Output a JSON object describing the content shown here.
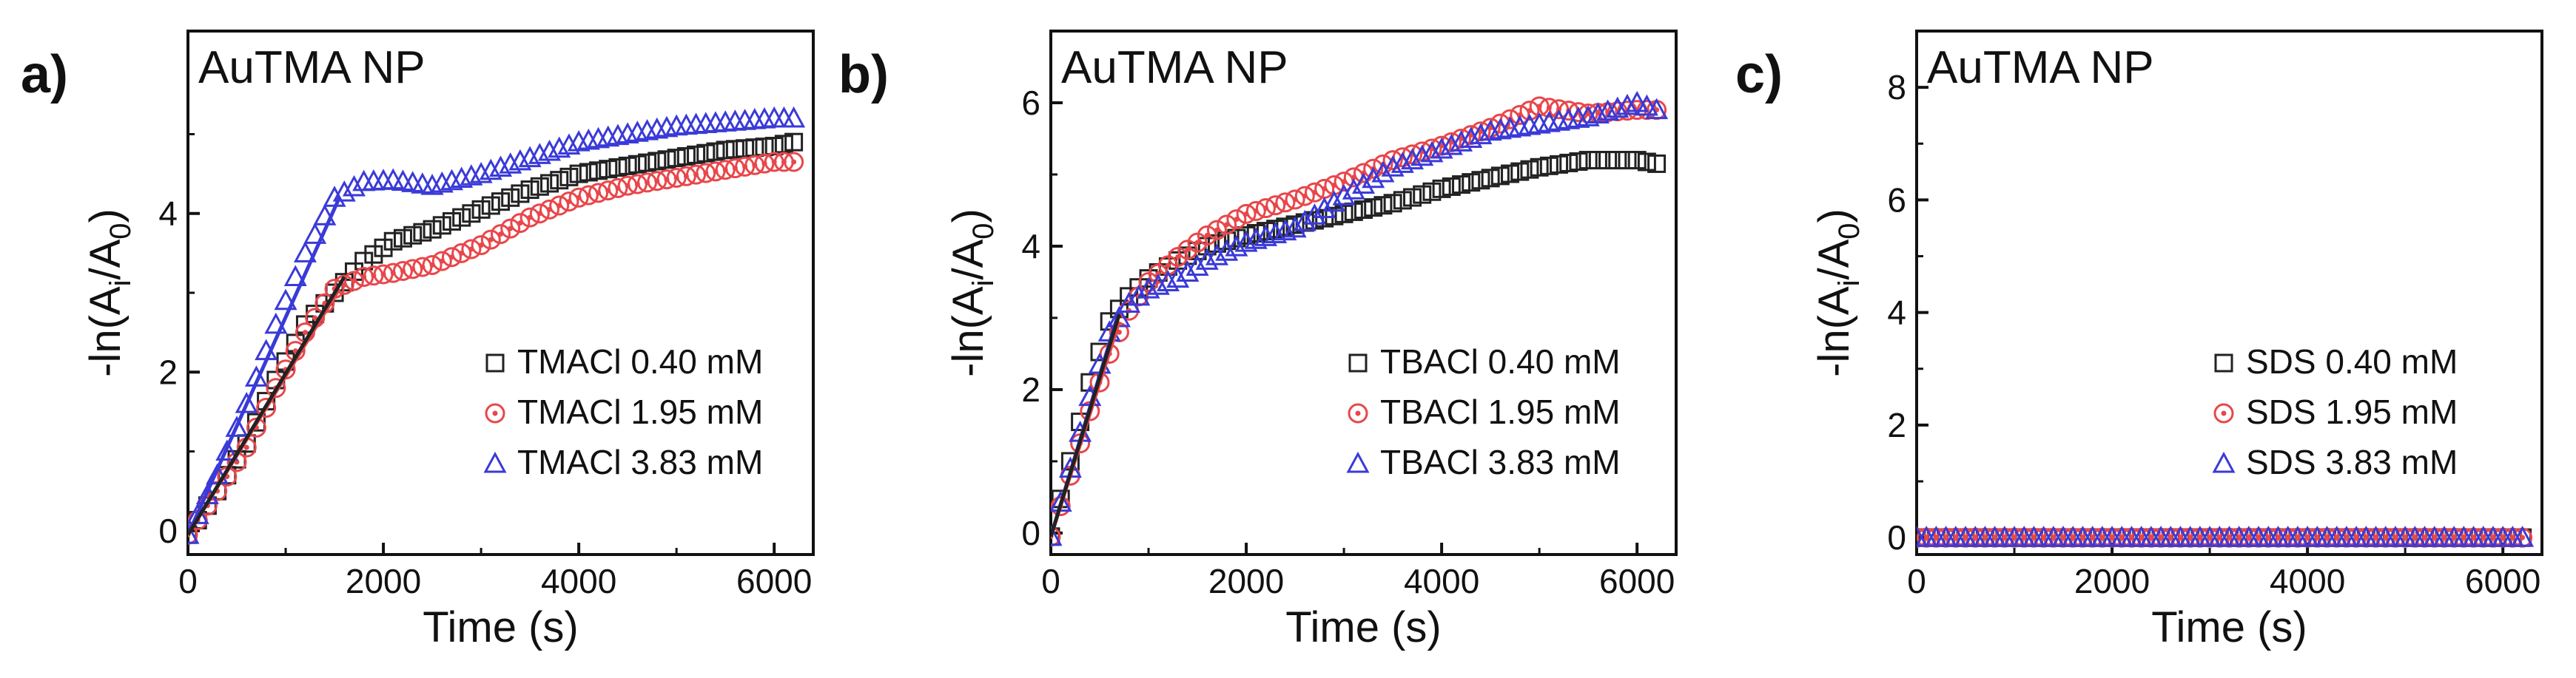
{
  "figure": {
    "panel_labels": [
      "a)",
      "b)",
      "c)"
    ]
  },
  "colors": {
    "black": "#222222",
    "red": "#e8474b",
    "blue": "#3a3ad8",
    "axis": "#111111"
  },
  "chart_data": [
    {
      "type": "scatter",
      "panel": "a)",
      "title": "AuTMA NP",
      "xlabel": "Time (s)",
      "ylabel": "-ln(A",
      "ylabel_sub1": "i",
      "ylabel_mid": "/A",
      "ylabel_sub2": "0",
      "ylabel_end": ")",
      "xlim": [
        0,
        6400
      ],
      "ylim": [
        -0.3,
        6.3
      ],
      "xticks": [
        0,
        2000,
        4000,
        6000
      ],
      "yticks": [
        0,
        2,
        4
      ],
      "legend_position": "bottom-right",
      "series": [
        {
          "name": "TMACl 0.40 mM",
          "color": "#222222",
          "marker": "square",
          "points": [
            [
              0,
              -0.05
            ],
            [
              300,
              0.5
            ],
            [
              600,
              1.1
            ],
            [
              900,
              1.9
            ],
            [
              1200,
              2.6
            ],
            [
              1500,
              3.0
            ],
            [
              1800,
              3.4
            ],
            [
              2100,
              3.65
            ],
            [
              2500,
              3.8
            ],
            [
              3000,
              4.05
            ],
            [
              3500,
              4.3
            ],
            [
              4000,
              4.5
            ],
            [
              4500,
              4.6
            ],
            [
              5000,
              4.7
            ],
            [
              5500,
              4.8
            ],
            [
              6000,
              4.85
            ],
            [
              6200,
              4.9
            ]
          ]
        },
        {
          "name": "TMACl 1.95 mM",
          "color": "#e8474b",
          "marker": "circle",
          "points": [
            [
              0,
              -0.05
            ],
            [
              300,
              0.5
            ],
            [
              600,
              1.05
            ],
            [
              900,
              1.8
            ],
            [
              1200,
              2.5
            ],
            [
              1500,
              3.05
            ],
            [
              1800,
              3.2
            ],
            [
              2100,
              3.25
            ],
            [
              2500,
              3.35
            ],
            [
              3000,
              3.6
            ],
            [
              3500,
              3.95
            ],
            [
              4000,
              4.2
            ],
            [
              4500,
              4.35
            ],
            [
              5000,
              4.45
            ],
            [
              5500,
              4.55
            ],
            [
              6000,
              4.65
            ],
            [
              6200,
              4.65
            ]
          ]
        },
        {
          "name": "TMACl 3.83 mM",
          "color": "#3a3ad8",
          "marker": "triangle",
          "points": [
            [
              0,
              -0.05
            ],
            [
              300,
              0.7
            ],
            [
              600,
              1.6
            ],
            [
              900,
              2.6
            ],
            [
              1200,
              3.5
            ],
            [
              1500,
              4.2
            ],
            [
              1800,
              4.4
            ],
            [
              2100,
              4.42
            ],
            [
              2500,
              4.35
            ],
            [
              3000,
              4.5
            ],
            [
              3500,
              4.7
            ],
            [
              4000,
              4.9
            ],
            [
              4500,
              5.0
            ],
            [
              5000,
              5.1
            ],
            [
              5500,
              5.15
            ],
            [
              6000,
              5.2
            ],
            [
              6200,
              5.2
            ]
          ]
        }
      ],
      "fits": [
        {
          "color": "#3a3ad8",
          "points": [
            [
              0,
              -0.05
            ],
            [
              1550,
              4.2
            ]
          ]
        },
        {
          "color": "#e8474b",
          "points": [
            [
              0,
              -0.05
            ],
            [
              1550,
              3.05
            ]
          ]
        },
        {
          "color": "#222222",
          "points": [
            [
              0,
              -0.05
            ],
            [
              1600,
              3.2
            ]
          ]
        }
      ]
    },
    {
      "type": "scatter",
      "panel": "b)",
      "title": "AuTMA NP",
      "xlabel": "Time (s)",
      "ylabel": "-ln(A",
      "ylabel_sub1": "i",
      "ylabel_mid": "/A",
      "ylabel_sub2": "0",
      "ylabel_end": ")",
      "xlim": [
        0,
        6400
      ],
      "ylim": [
        -0.3,
        7.0
      ],
      "xticks": [
        0,
        2000,
        4000,
        6000
      ],
      "yticks": [
        0,
        2,
        4,
        6
      ],
      "legend_position": "bottom-right",
      "series": [
        {
          "name": "TBACl 0.40 mM",
          "color": "#222222",
          "marker": "square",
          "points": [
            [
              0,
              -0.05
            ],
            [
              200,
              1.0
            ],
            [
              400,
              2.1
            ],
            [
              600,
              2.95
            ],
            [
              800,
              3.3
            ],
            [
              1000,
              3.55
            ],
            [
              1300,
              3.8
            ],
            [
              1600,
              4.0
            ],
            [
              2000,
              4.15
            ],
            [
              2500,
              4.3
            ],
            [
              3000,
              4.45
            ],
            [
              3500,
              4.6
            ],
            [
              4000,
              4.8
            ],
            [
              4500,
              4.95
            ],
            [
              5000,
              5.1
            ],
            [
              5500,
              5.2
            ],
            [
              6000,
              5.2
            ],
            [
              6200,
              5.15
            ]
          ]
        },
        {
          "name": "TBACl 1.95 mM",
          "color": "#e8474b",
          "marker": "circle",
          "points": [
            [
              0,
              -0.05
            ],
            [
              200,
              0.8
            ],
            [
              400,
              1.7
            ],
            [
              600,
              2.5
            ],
            [
              800,
              3.1
            ],
            [
              1000,
              3.5
            ],
            [
              1300,
              3.85
            ],
            [
              1600,
              4.15
            ],
            [
              2000,
              4.45
            ],
            [
              2500,
              4.65
            ],
            [
              3000,
              4.9
            ],
            [
              3500,
              5.2
            ],
            [
              4000,
              5.4
            ],
            [
              4500,
              5.65
            ],
            [
              5000,
              5.95
            ],
            [
              5500,
              5.85
            ],
            [
              6000,
              5.9
            ],
            [
              6200,
              5.9
            ]
          ]
        },
        {
          "name": "TBACl 3.83 mM",
          "color": "#3a3ad8",
          "marker": "triangle",
          "points": [
            [
              0,
              -0.05
            ],
            [
              200,
              0.9
            ],
            [
              400,
              1.9
            ],
            [
              600,
              2.8
            ],
            [
              800,
              3.2
            ],
            [
              1000,
              3.4
            ],
            [
              1300,
              3.55
            ],
            [
              1600,
              3.8
            ],
            [
              2000,
              4.05
            ],
            [
              2500,
              4.25
            ],
            [
              3000,
              4.7
            ],
            [
              3500,
              5.1
            ],
            [
              4000,
              5.35
            ],
            [
              4500,
              5.6
            ],
            [
              5000,
              5.7
            ],
            [
              5500,
              5.8
            ],
            [
              6000,
              6.0
            ],
            [
              6200,
              5.9
            ]
          ]
        }
      ],
      "fits": [
        {
          "color": "#3a3ad8",
          "points": [
            [
              0,
              -0.05
            ],
            [
              700,
              3.1
            ]
          ]
        },
        {
          "color": "#e8474b",
          "points": [
            [
              0,
              -0.05
            ],
            [
              700,
              2.95
            ]
          ]
        },
        {
          "color": "#222222",
          "points": [
            [
              0,
              -0.05
            ],
            [
              700,
              3.05
            ]
          ]
        }
      ]
    },
    {
      "type": "scatter",
      "panel": "c)",
      "title": "AuTMA NP",
      "xlabel": "Time (s)",
      "ylabel": "-ln(A",
      "ylabel_sub1": "i",
      "ylabel_mid": "/A",
      "ylabel_sub2": "0",
      "ylabel_end": ")",
      "xlim": [
        0,
        6400
      ],
      "ylim": [
        -0.3,
        9.0
      ],
      "xticks": [
        0,
        2000,
        4000,
        6000
      ],
      "yticks": [
        0,
        2,
        4,
        6,
        8
      ],
      "legend_position": "bottom-right",
      "series": [
        {
          "name": "SDS 0.40 mM",
          "color": "#222222",
          "marker": "square",
          "points": [
            [
              0,
              0
            ],
            [
              500,
              0
            ],
            [
              1000,
              0
            ],
            [
              1500,
              0
            ],
            [
              2000,
              0
            ],
            [
              2500,
              0
            ],
            [
              3000,
              0
            ],
            [
              3500,
              0
            ],
            [
              4000,
              0
            ],
            [
              4500,
              0
            ],
            [
              5000,
              0
            ],
            [
              5500,
              0
            ],
            [
              6000,
              0
            ],
            [
              6200,
              0
            ]
          ]
        },
        {
          "name": "SDS 1.95 mM",
          "color": "#e8474b",
          "marker": "circle",
          "points": [
            [
              0,
              0
            ],
            [
              500,
              0
            ],
            [
              1000,
              0
            ],
            [
              1500,
              0
            ],
            [
              2000,
              0
            ],
            [
              2500,
              0
            ],
            [
              3000,
              0
            ],
            [
              3500,
              0
            ],
            [
              4000,
              0
            ],
            [
              4500,
              0
            ],
            [
              5000,
              0
            ],
            [
              5500,
              0
            ],
            [
              6000,
              0
            ],
            [
              6200,
              0
            ]
          ]
        },
        {
          "name": "SDS 3.83 mM",
          "color": "#3a3ad8",
          "marker": "triangle",
          "points": [
            [
              0,
              0
            ],
            [
              500,
              0
            ],
            [
              1000,
              0
            ],
            [
              1500,
              0
            ],
            [
              2000,
              0
            ],
            [
              2500,
              0
            ],
            [
              3000,
              0
            ],
            [
              3500,
              0
            ],
            [
              4000,
              0
            ],
            [
              4500,
              0
            ],
            [
              5000,
              0
            ],
            [
              5500,
              0
            ],
            [
              6000,
              0
            ],
            [
              6200,
              0
            ]
          ]
        }
      ],
      "fits": []
    }
  ]
}
